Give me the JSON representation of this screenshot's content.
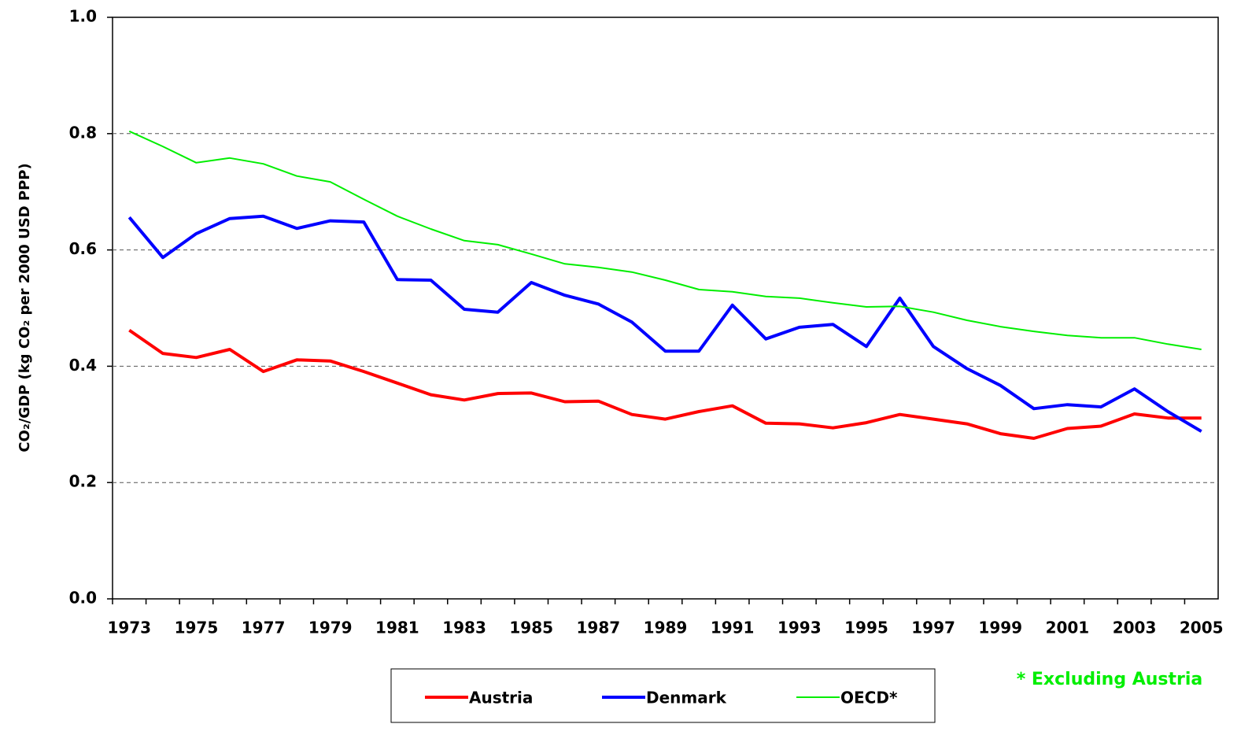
{
  "chart_data": {
    "type": "line",
    "y_label": "CO₂/GDP (kg CO₂ per 2000 USD PPP)",
    "annotation": "* Excluding  Austria",
    "categories": [
      "1973",
      null,
      "1975",
      null,
      "1977",
      null,
      "1979",
      null,
      "1981",
      null,
      "1983",
      null,
      "1985",
      null,
      "1987",
      null,
      "1989",
      null,
      "1991",
      null,
      "1993",
      null,
      "1995",
      null,
      "1997",
      null,
      "1999",
      null,
      "2001",
      null,
      "2003",
      null,
      "2005"
    ],
    "series": [
      {
        "name": "Austria",
        "color": "#ff0000",
        "values": [
          0.462,
          0.422,
          0.415,
          0.429,
          0.391,
          0.411,
          0.409,
          0.391,
          0.371,
          0.351,
          0.342,
          0.353,
          0.354,
          0.339,
          0.34,
          0.317,
          0.309,
          0.322,
          0.332,
          0.302,
          0.301,
          0.294,
          0.303,
          0.317,
          0.309,
          0.301,
          0.284,
          0.276,
          0.293,
          0.297,
          0.318,
          0.311,
          0.311
        ]
      },
      {
        "name": "Denmark",
        "color": "#0000ff",
        "values": [
          0.656,
          0.587,
          0.628,
          0.654,
          0.658,
          0.637,
          0.65,
          0.648,
          0.549,
          0.548,
          0.498,
          0.493,
          0.544,
          0.522,
          0.507,
          0.476,
          0.426,
          0.426,
          0.505,
          0.447,
          0.467,
          0.472,
          0.434,
          0.517,
          0.434,
          0.396,
          0.367,
          0.327,
          0.334,
          0.33,
          0.361,
          0.322,
          0.288
        ]
      },
      {
        "name": "OECD*",
        "color": "#00ee00",
        "values": [
          0.804,
          0.778,
          0.75,
          0.758,
          0.748,
          0.727,
          0.717,
          0.687,
          0.658,
          0.636,
          0.616,
          0.609,
          0.593,
          0.576,
          0.57,
          0.562,
          0.548,
          0.532,
          0.528,
          0.52,
          0.517,
          0.509,
          0.502,
          0.503,
          0.493,
          0.479,
          0.468,
          0.46,
          0.453,
          0.449,
          0.449,
          0.438,
          0.429
        ]
      }
    ],
    "ylim": [
      0,
      1
    ],
    "yticks": [
      {
        "value": 0,
        "label": "0.0"
      },
      0.2,
      0.4,
      0.6,
      0.8,
      {
        "value": 1,
        "label": "1.0"
      }
    ],
    "grid": true
  }
}
